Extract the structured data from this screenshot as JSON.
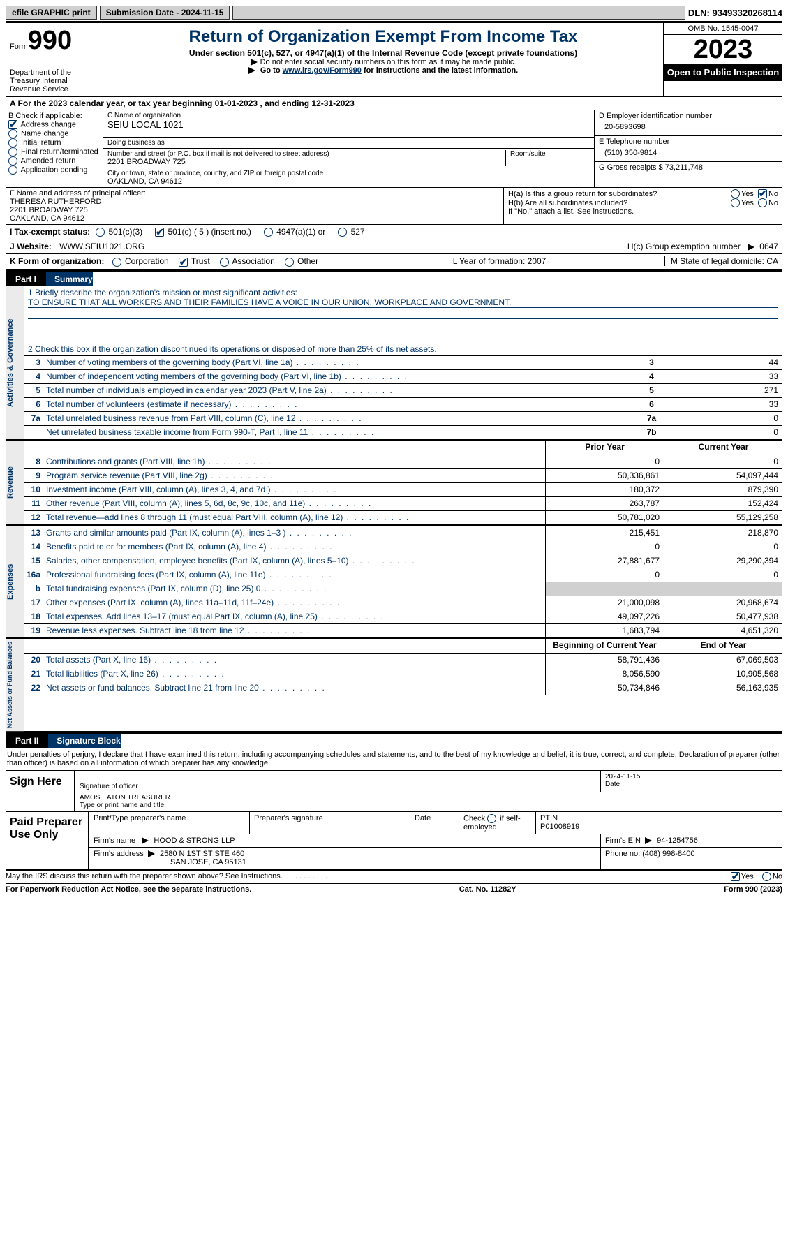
{
  "topbar": {
    "efile": "efile GRAPHIC print",
    "submission": "Submission Date - 2024-11-15",
    "dln_label": "DLN:",
    "dln": "93493320268114"
  },
  "header": {
    "form_word": "Form",
    "form_num": "990",
    "dept": "Department of the Treasury Internal Revenue Service",
    "title": "Return of Organization Exempt From Income Tax",
    "sub1": "Under section 501(c), 527, or 4947(a)(1) of the Internal Revenue Code (except private foundations)",
    "sub2": "Do not enter social security numbers on this form as it may be made public.",
    "sub3_pre": "Go to ",
    "sub3_link": "www.irs.gov/Form990",
    "sub3_post": " for instructions and the latest information.",
    "omb": "OMB No. 1545-0047",
    "year": "2023",
    "inspection": "Open to Public Inspection"
  },
  "rowA": {
    "text_pre": "A For the 2023 calendar year, or tax year beginning ",
    "begin": "01-01-2023",
    "mid": "  , and ending ",
    "end": "12-31-2023"
  },
  "boxB": {
    "label": "B Check if applicable:",
    "items": [
      "Address change",
      "Name change",
      "Initial return",
      "Final return/terminated",
      "Amended return",
      "Application pending"
    ],
    "checked_idx": 0
  },
  "boxC": {
    "name_label": "C Name of organization",
    "name": "SEIU LOCAL 1021",
    "dba_label": "Doing business as",
    "dba": "",
    "street_label": "Number and street (or P.O. box if mail is not delivered to street address)",
    "street": "2201 BROADWAY 725",
    "room_label": "Room/suite",
    "room": "",
    "city_label": "City or town, state or province, country, and ZIP or foreign postal code",
    "city": "OAKLAND, CA  94612"
  },
  "boxD": {
    "label": "D Employer identification number",
    "val": "20-5893698"
  },
  "boxE": {
    "label": "E Telephone number",
    "val": "(510) 350-9814"
  },
  "boxG": {
    "label": "G Gross receipts $",
    "val": "73,211,748"
  },
  "boxF": {
    "label": "F Name and address of principal officer:",
    "name": "THERESA RUTHERFORD",
    "street": "2201 BROADWAY 725",
    "city": "OAKLAND, CA  94612"
  },
  "boxH": {
    "a": "H(a)  Is this a group return for subordinates?",
    "b": "H(b)  Are all subordinates included?",
    "b_note": "If \"No,\" attach a list. See instructions.",
    "c_label": "H(c)  Group exemption number",
    "c_val": "0647",
    "yes": "Yes",
    "no": "No"
  },
  "rowI": {
    "label": "I  Tax-exempt status:",
    "opts": [
      "501(c)(3)",
      "501(c) ( 5 ) (insert no.)",
      "4947(a)(1) or",
      "527"
    ],
    "checked_idx": 1
  },
  "rowJ": {
    "label": "J  Website:",
    "val": "WWW.SEIU1021.ORG"
  },
  "rowK": {
    "label": "K Form of organization:",
    "opts": [
      "Corporation",
      "Trust",
      "Association",
      "Other"
    ],
    "checked_idx": 1
  },
  "rowL": {
    "label": "L Year of formation:",
    "val": "2007"
  },
  "rowM": {
    "label": "M State of legal domicile:",
    "val": "CA"
  },
  "part1": {
    "tag": "Part I",
    "title": "Summary"
  },
  "summary": {
    "tab1": "Activities & Governance",
    "q1_label": "1  Briefly describe the organization's mission or most significant activities:",
    "q1_val": "TO ENSURE THAT ALL WORKERS AND THEIR FAMILIES HAVE A VOICE IN OUR UNION, WORKPLACE AND GOVERNMENT.",
    "q2": "2  Check this box       if the organization discontinued its operations or disposed of more than 25% of its net assets.",
    "rows_a": [
      {
        "n": "3",
        "d": "Number of voting members of the governing body (Part VI, line 1a)",
        "b": "3",
        "v": "44"
      },
      {
        "n": "4",
        "d": "Number of independent voting members of the governing body (Part VI, line 1b)",
        "b": "4",
        "v": "33"
      },
      {
        "n": "5",
        "d": "Total number of individuals employed in calendar year 2023 (Part V, line 2a)",
        "b": "5",
        "v": "271"
      },
      {
        "n": "6",
        "d": "Total number of volunteers (estimate if necessary)",
        "b": "6",
        "v": "33"
      },
      {
        "n": "7a",
        "d": "Total unrelated business revenue from Part VIII, column (C), line 12",
        "b": "7a",
        "v": "0"
      },
      {
        "n": "",
        "d": "Net unrelated business taxable income from Form 990-T, Part I, line 11",
        "b": "7b",
        "v": "0"
      }
    ],
    "tab2": "Revenue",
    "head_prior": "Prior Year",
    "head_curr": "Current Year",
    "rows_r": [
      {
        "n": "8",
        "d": "Contributions and grants (Part VIII, line 1h)",
        "p": "0",
        "c": "0"
      },
      {
        "n": "9",
        "d": "Program service revenue (Part VIII, line 2g)",
        "p": "50,336,861",
        "c": "54,097,444"
      },
      {
        "n": "10",
        "d": "Investment income (Part VIII, column (A), lines 3, 4, and 7d )",
        "p": "180,372",
        "c": "879,390"
      },
      {
        "n": "11",
        "d": "Other revenue (Part VIII, column (A), lines 5, 6d, 8c, 9c, 10c, and 11e)",
        "p": "263,787",
        "c": "152,424"
      },
      {
        "n": "12",
        "d": "Total revenue—add lines 8 through 11 (must equal Part VIII, column (A), line 12)",
        "p": "50,781,020",
        "c": "55,129,258"
      }
    ],
    "tab3": "Expenses",
    "rows_e": [
      {
        "n": "13",
        "d": "Grants and similar amounts paid (Part IX, column (A), lines 1–3 )",
        "p": "215,451",
        "c": "218,870"
      },
      {
        "n": "14",
        "d": "Benefits paid to or for members (Part IX, column (A), line 4)",
        "p": "0",
        "c": "0"
      },
      {
        "n": "15",
        "d": "Salaries, other compensation, employee benefits (Part IX, column (A), lines 5–10)",
        "p": "27,881,677",
        "c": "29,290,394"
      },
      {
        "n": "16a",
        "d": "Professional fundraising fees (Part IX, column (A), line 11e)",
        "p": "0",
        "c": "0"
      },
      {
        "n": "b",
        "d": "Total fundraising expenses (Part IX, column (D), line 25) 0",
        "p": "",
        "c": "",
        "shaded": true
      },
      {
        "n": "17",
        "d": "Other expenses (Part IX, column (A), lines 11a–11d, 11f–24e)",
        "p": "21,000,098",
        "c": "20,968,674"
      },
      {
        "n": "18",
        "d": "Total expenses. Add lines 13–17 (must equal Part IX, column (A), line 25)",
        "p": "49,097,226",
        "c": "50,477,938"
      },
      {
        "n": "19",
        "d": "Revenue less expenses. Subtract line 18 from line 12",
        "p": "1,683,794",
        "c": "4,651,320"
      }
    ],
    "tab4": "Net Assets or Fund Balances",
    "head_begin": "Beginning of Current Year",
    "head_end": "End of Year",
    "rows_n": [
      {
        "n": "20",
        "d": "Total assets (Part X, line 16)",
        "p": "58,791,436",
        "c": "67,069,503"
      },
      {
        "n": "21",
        "d": "Total liabilities (Part X, line 26)",
        "p": "8,056,590",
        "c": "10,905,568"
      },
      {
        "n": "22",
        "d": "Net assets or fund balances. Subtract line 21 from line 20",
        "p": "50,734,846",
        "c": "56,163,935"
      }
    ]
  },
  "part2": {
    "tag": "Part II",
    "title": "Signature Block"
  },
  "declare": "Under penalties of perjury, I declare that I have examined this return, including accompanying schedules and statements, and to the best of my knowledge and belief, it is true, correct, and complete. Declaration of preparer (other than officer) is based on all information of which preparer has any knowledge.",
  "sign": {
    "label": "Sign Here",
    "sig_label": "Signature of officer",
    "date_label": "Date",
    "date": "2024-11-15",
    "officer": "AMOS EATON TREASURER",
    "type_label": "Type or print name and title"
  },
  "prep": {
    "label": "Paid Preparer Use Only",
    "h1": "Print/Type preparer's name",
    "h2": "Preparer's signature",
    "h3": "Date",
    "h4_pre": "Check",
    "h4_post": "if self-employed",
    "h5": "PTIN",
    "ptin": "P01008919",
    "firm_name_label": "Firm's name",
    "firm_name": "HOOD & STRONG LLP",
    "firm_ein_label": "Firm's EIN",
    "firm_ein": "94-1254756",
    "firm_addr_label": "Firm's address",
    "firm_addr1": "2580 N 1ST ST STE 460",
    "firm_addr2": "SAN JOSE, CA  95131",
    "phone_label": "Phone no.",
    "phone": "(408) 998-8400"
  },
  "discuss": {
    "text": "May the IRS discuss this return with the preparer shown above? See Instructions.",
    "yes": "Yes",
    "no": "No"
  },
  "footer": {
    "left": "For Paperwork Reduction Act Notice, see the separate instructions.",
    "mid": "Cat. No. 11282Y",
    "right_pre": "Form ",
    "right_form": "990",
    "right_post": " (2023)"
  }
}
